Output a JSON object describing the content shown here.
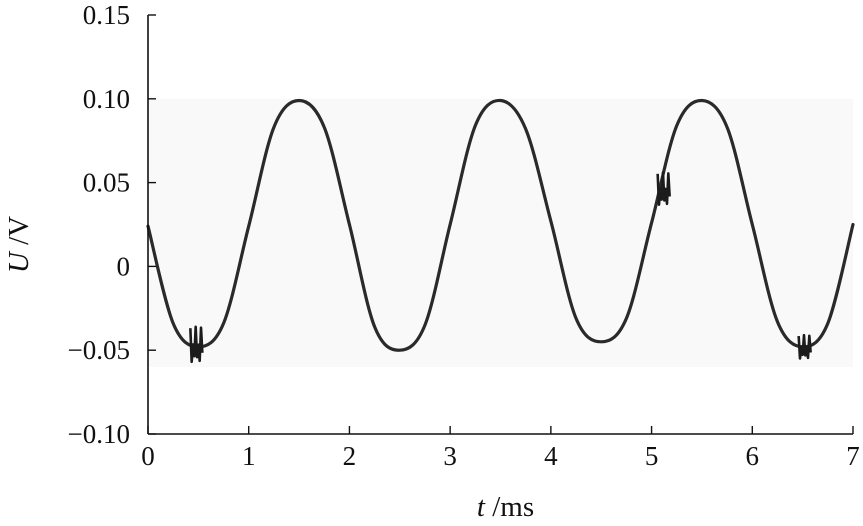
{
  "chart_data": {
    "type": "line",
    "xlabel_var": "t",
    "xlabel_unit": " /ms",
    "ylabel_var": "U",
    "ylabel_unit": " /V",
    "xlim": [
      0,
      7
    ],
    "ylim": [
      -0.1,
      0.15
    ],
    "xticks": [
      0,
      1,
      2,
      3,
      4,
      5,
      6,
      7
    ],
    "xtick_labels": [
      "0",
      "1",
      "2",
      "3",
      "4",
      "5",
      "6",
      "7"
    ],
    "yticks": [
      -0.1,
      -0.05,
      0,
      0.05,
      0.1,
      0.15
    ],
    "ytick_labels": [
      "−0.10",
      "−0.05",
      "0",
      "0.05",
      "0.10",
      "0.15"
    ],
    "grid": false,
    "series": [
      {
        "color": "#2a2a2a",
        "x": [
          0,
          0.25,
          0.5,
          0.75,
          1.0,
          1.25,
          1.5,
          1.75,
          2.0,
          2.25,
          2.5,
          2.75,
          3.0,
          3.25,
          3.5,
          3.75,
          4.0,
          4.25,
          4.5,
          4.75,
          5.0,
          5.25,
          5.5,
          5.75,
          6.0,
          6.25,
          6.5,
          6.75,
          7.0
        ],
        "y": [
          0.024,
          -0.034,
          -0.048,
          -0.034,
          0.024,
          0.083,
          0.099,
          0.083,
          0.025,
          -0.036,
          -0.05,
          -0.035,
          0.025,
          0.084,
          0.099,
          0.082,
          0.027,
          -0.031,
          -0.045,
          -0.031,
          0.026,
          0.084,
          0.099,
          0.083,
          0.025,
          -0.033,
          -0.048,
          -0.034,
          0.025
        ]
      }
    ],
    "bursts": [
      {
        "t": 0.48,
        "v": -0.048,
        "amp": 0.012
      },
      {
        "t": 5.12,
        "v": 0.045,
        "amp": 0.011
      },
      {
        "t": 6.52,
        "v": -0.049,
        "amp": 0.008
      }
    ]
  }
}
